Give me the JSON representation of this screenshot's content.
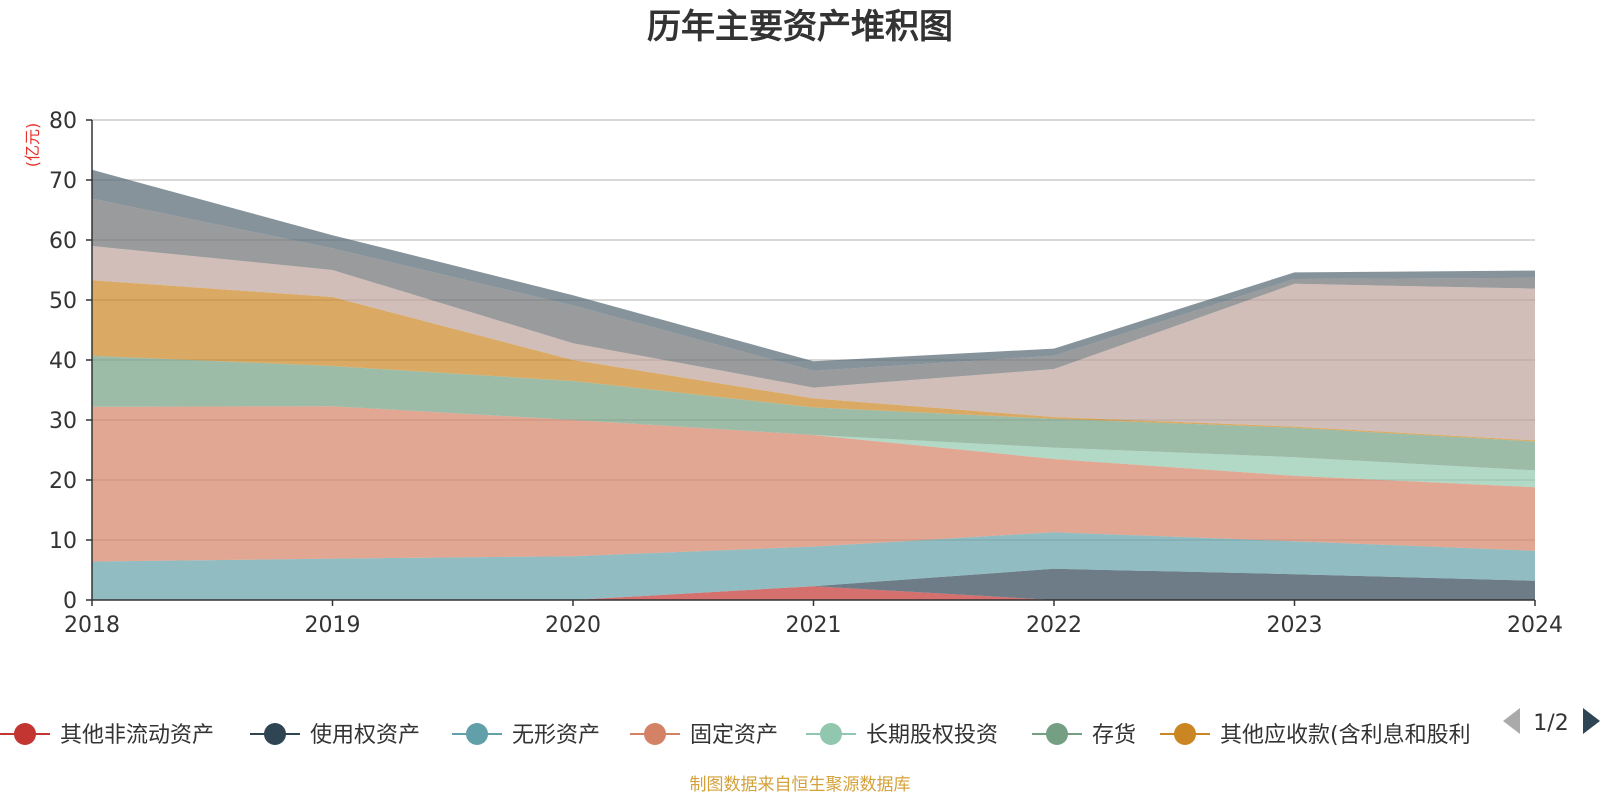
{
  "chart_data": {
    "type": "area",
    "stacked": true,
    "title": "历年主要资产堆积图",
    "ylabel": "(亿元)",
    "ylim": [
      0,
      80
    ],
    "yticks": [
      0,
      10,
      20,
      30,
      40,
      50,
      60,
      70,
      80
    ],
    "grid": true,
    "legend_position": "bottom",
    "x": [
      "2018",
      "2019",
      "2020",
      "2021",
      "2022",
      "2023",
      "2024"
    ],
    "series": [
      {
        "name": "其他非流动资产",
        "color": "#c23531",
        "values": [
          0,
          0,
          0,
          2.3,
          0,
          0,
          0
        ]
      },
      {
        "name": "使用权资产",
        "color": "#2f4554",
        "values": [
          0,
          0,
          0,
          0,
          5.2,
          4.3,
          3.2
        ]
      },
      {
        "name": "无形资产",
        "color": "#61a0a8",
        "values": [
          6.4,
          6.9,
          7.3,
          6.6,
          6.1,
          5.5,
          5.0
        ]
      },
      {
        "name": "固定资产",
        "color": "#d48265",
        "values": [
          25.8,
          25.4,
          22.7,
          18.6,
          12.2,
          10.9,
          10.6
        ]
      },
      {
        "name": "长期股权投资",
        "color": "#91c7ae",
        "values": [
          0,
          0,
          0,
          0,
          1.9,
          3.1,
          2.8
        ]
      },
      {
        "name": "存货",
        "color": "#749f83",
        "values": [
          8.5,
          6.7,
          6.5,
          4.6,
          4.8,
          4.9,
          4.8
        ]
      },
      {
        "name": "其他应收款(含利息和股利)",
        "color": "#ca8622",
        "values": [
          12.6,
          11.5,
          3.5,
          1.5,
          0.3,
          0.2,
          0.2
        ]
      },
      {
        "name": "",
        "color": "#bda29a",
        "values": [
          5.7,
          4.5,
          2.8,
          1.8,
          8.0,
          23.8,
          25.3
        ]
      },
      {
        "name": "",
        "color": "#6e7074",
        "values": [
          7.9,
          3.6,
          6.3,
          2.8,
          2.2,
          0.8,
          1.8
        ]
      },
      {
        "name": "",
        "color": "#546570",
        "values": [
          4.8,
          2.2,
          1.7,
          1.6,
          1.2,
          1.1,
          1.2
        ]
      }
    ],
    "legend_visible_count": 7,
    "legend_label_overflow": "其他应收款(含利息和股利"
  },
  "legend": {
    "page_indicator": "1/2",
    "prev_icon": "triangle-left-icon",
    "next_icon": "triangle-right-icon"
  },
  "source_note": "制图数据来自恒生聚源数据库"
}
